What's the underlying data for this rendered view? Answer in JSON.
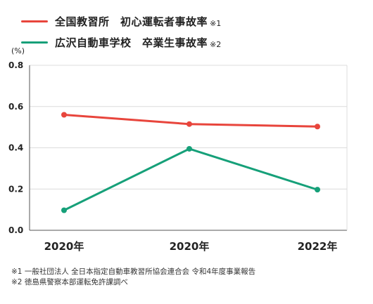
{
  "chart_data": {
    "type": "line",
    "title": "",
    "xlabel": "",
    "ylabel": "(%)",
    "categories": [
      "2020年",
      "2020年",
      "2022年"
    ],
    "series": [
      {
        "name": "全国教習所　初心運転者事故率",
        "note": "※1",
        "color": "#e8453c",
        "values": [
          0.56,
          0.515,
          0.503
        ]
      },
      {
        "name": "広沢自動車学校　卒業生事故率",
        "note": "※2",
        "color": "#16a079",
        "values": [
          0.097,
          0.395,
          0.197
        ]
      }
    ],
    "ylim": [
      0,
      0.8
    ],
    "yticks": [
      "0.0",
      "0.2",
      "0.4",
      "0.6",
      "0.8"
    ],
    "grid": true,
    "legend": "top-left"
  },
  "footnotes": [
    "※1 一般社団法人 全日本指定自動車教習所協会連合会 令和4年度事業報告",
    "※2 徳島県警察本部運転免許課調べ"
  ]
}
